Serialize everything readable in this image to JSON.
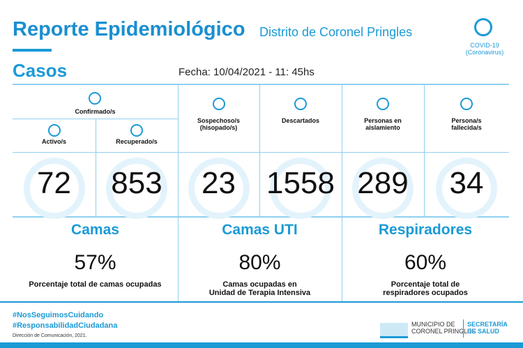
{
  "header": {
    "title": "Reporte Epidemiológico",
    "subtitle": "Distrito de Coronel Pringles",
    "badge": "COVID-19\n(Coronavirus)"
  },
  "cases": {
    "title": "Casos",
    "date": "Fecha: 10/04/2021 - 11: 45hs",
    "group": "Confirmado/s",
    "columns": [
      {
        "label": "Activo/s",
        "value": 72
      },
      {
        "label": "Recuperado/s",
        "value": 853
      },
      {
        "label": "Sospechoso/s\n(hisopado/s)",
        "value": 23
      },
      {
        "label": "Descartados",
        "value": 1558
      },
      {
        "label": "Personas en\naislamiento",
        "value": 289
      },
      {
        "label": "Persona/s\nfallecida/s",
        "value": 34
      }
    ]
  },
  "panels": [
    {
      "title": "Camas",
      "value": "57%",
      "caption": "Porcentaje total de camas ocupadas"
    },
    {
      "title": "Camas UTI",
      "value": "80%",
      "caption": "Camas ocupadas en\nUnidad de Terapia Intensiva"
    },
    {
      "title": "Respiradores",
      "value": "60%",
      "caption": "Porcentaje total de\nrespiradores ocupados"
    }
  ],
  "footer": {
    "hashtags": [
      "#NosSeguimosCuidando",
      "#ResponsabilidadCiudadana"
    ],
    "credit": "Dirección de Comunicación, 2021.",
    "org": "MUNICIPIO DE\nCORONEL PRINGLES",
    "dept": "SECRETARÍA\nDE SALUD"
  }
}
